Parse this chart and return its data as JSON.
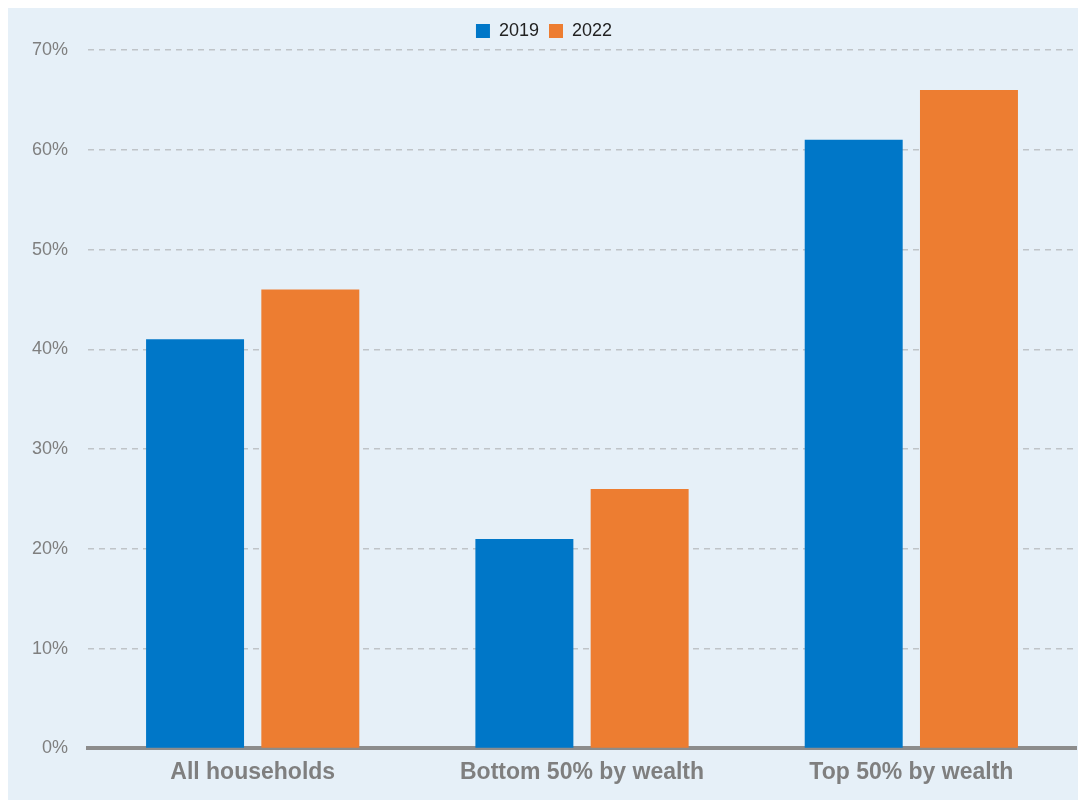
{
  "chart_data": {
    "type": "bar",
    "categories": [
      "All households",
      "Bottom 50% by wealth",
      "Top 50% by wealth"
    ],
    "series": [
      {
        "name": "2019",
        "color": "#0077c8",
        "values": [
          41,
          21,
          61
        ]
      },
      {
        "name": "2022",
        "color": "#ed7d31",
        "values": [
          46,
          26,
          66
        ]
      }
    ],
    "ylim": [
      0,
      70
    ],
    "yticks": [
      {
        "value": 0,
        "label": "0%"
      },
      {
        "value": 10,
        "label": "10%"
      },
      {
        "value": 20,
        "label": "20%"
      },
      {
        "value": 30,
        "label": "30%"
      },
      {
        "value": 40,
        "label": "40%"
      },
      {
        "value": 50,
        "label": "50%"
      },
      {
        "value": 60,
        "label": "60%"
      },
      {
        "value": 70,
        "label": "70%"
      }
    ],
    "grid": "y",
    "legend": "top"
  }
}
